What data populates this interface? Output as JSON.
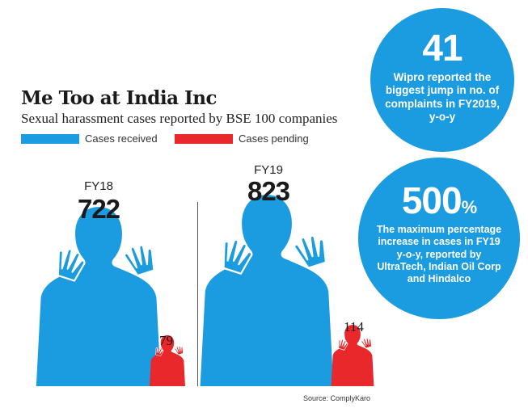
{
  "title": "Me Too at India Inc",
  "subtitle": "Sexual harassment cases reported by BSE 100 companies",
  "legend": [
    {
      "label": "Cases received",
      "color": "#1b9be0"
    },
    {
      "label": "Cases pending",
      "color": "#e8282b"
    }
  ],
  "chart_data": {
    "type": "bar",
    "categories": [
      "FY18",
      "FY19"
    ],
    "series": [
      {
        "name": "Cases received",
        "values": [
          722,
          823
        ]
      },
      {
        "name": "Cases pending",
        "values": [
          79,
          114
        ]
      }
    ]
  },
  "callouts": [
    {
      "value": "41",
      "text": "Wipro reported the biggest jump in no. of complaints in FY2019, y-o-y"
    },
    {
      "value": "500",
      "unit": "%",
      "text": "The maximum percentage increase in cases in FY19 y-o-y, reported by UltraTech, Indian Oil Corp and Hindalco"
    }
  ],
  "source": "Source: ComplyKaro"
}
